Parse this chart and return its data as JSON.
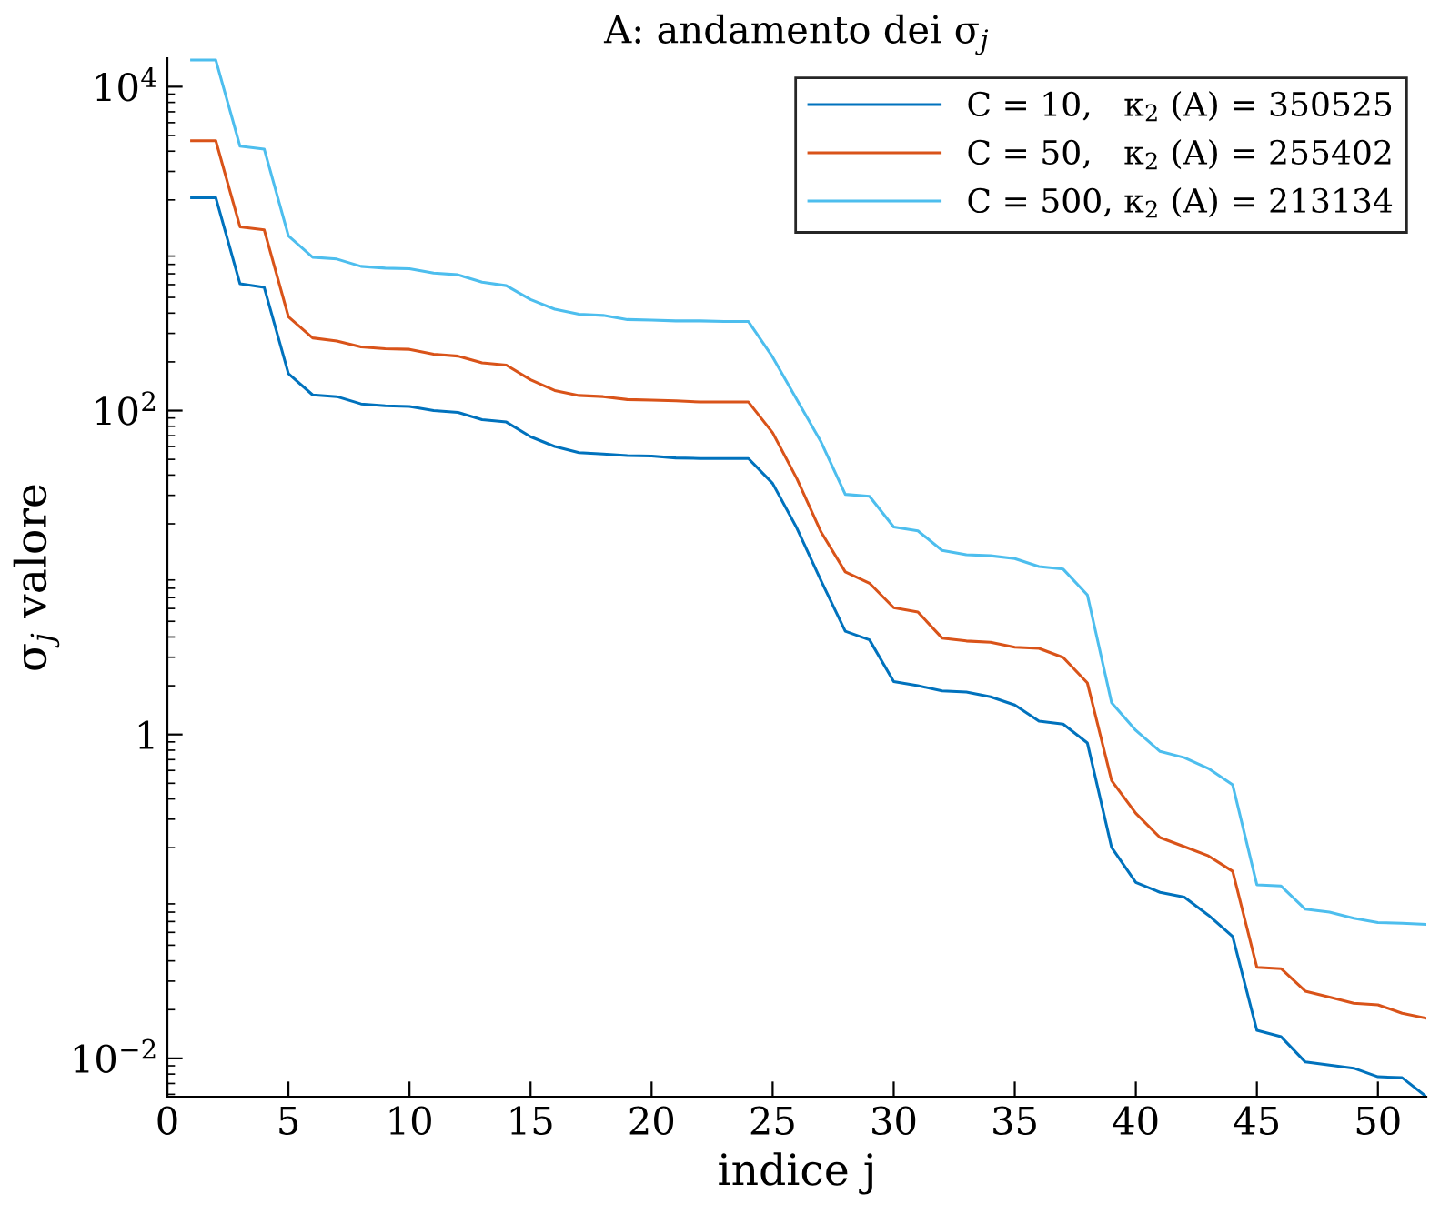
{
  "chart_data": {
    "type": "line",
    "title": "A: andamento dei σ$_{j}$",
    "xlabel": "indice j",
    "ylabel": "σ$_{j}$ valore",
    "x": [
      1,
      2,
      3,
      4,
      5,
      6,
      7,
      8,
      9,
      10,
      11,
      12,
      13,
      14,
      15,
      16,
      17,
      18,
      19,
      20,
      21,
      22,
      23,
      24,
      25,
      26,
      27,
      28,
      29,
      30,
      31,
      32,
      33,
      34,
      35,
      36,
      37,
      38,
      39,
      40,
      41,
      42,
      43,
      44,
      45,
      46,
      47,
      48,
      49,
      50,
      51,
      52
    ],
    "series": [
      {
        "name": "C = 10,   κ$_{2}$ (A) = 350525",
        "color": "#0072bd",
        "values": [
          2065,
          2065,
          607,
          576,
          169,
          125,
          122,
          110,
          107,
          106,
          100,
          97.5,
          88,
          85,
          69,
          60,
          55,
          54,
          52.8,
          52.4,
          51,
          50.6,
          50.6,
          50.6,
          35.5,
          18.8,
          8.9,
          4.34,
          3.84,
          2.12,
          2.0,
          1.86,
          1.83,
          1.71,
          1.52,
          1.21,
          1.16,
          0.886,
          0.201,
          0.122,
          0.106,
          0.099,
          0.0766,
          0.0566,
          0.0149,
          0.0136,
          0.0095,
          0.0091,
          0.0087,
          0.0077,
          0.0076,
          0.0058
        ]
      },
      {
        "name": "C = 50,   κ$_{2}$ (A) = 255402",
        "color": "#d95319",
        "values": [
          4640,
          4640,
          1364,
          1306,
          380,
          281,
          269,
          247,
          241,
          239,
          223,
          217,
          197,
          191,
          155,
          133,
          124,
          122,
          117,
          116,
          115,
          113,
          113,
          113,
          73,
          38,
          17.8,
          10.1,
          8.6,
          6.07,
          5.71,
          3.94,
          3.78,
          3.71,
          3.46,
          3.4,
          2.99,
          2.08,
          0.519,
          0.326,
          0.231,
          0.203,
          0.178,
          0.143,
          0.0365,
          0.0358,
          0.026,
          0.0239,
          0.0219,
          0.0214,
          0.019,
          0.0177
        ]
      },
      {
        "name": "C = 500, κ$_{2}$ (A) = 213134",
        "color": "#4dbeee",
        "values": [
          14600,
          14600,
          4290,
          4120,
          1200,
          885,
          863,
          778,
          758,
          752,
          708,
          690,
          622,
          591,
          485,
          423,
          394,
          387,
          365,
          362,
          358,
          358,
          355,
          355,
          214,
          117,
          64,
          30.4,
          29.6,
          19.1,
          18.1,
          13.7,
          12.9,
          12.7,
          12.2,
          10.9,
          10.5,
          7.27,
          1.57,
          1.06,
          0.786,
          0.72,
          0.617,
          0.489,
          0.118,
          0.116,
          0.0834,
          0.08,
          0.0733,
          0.069,
          0.0684,
          0.0673
        ]
      }
    ],
    "log": "y",
    "xlim": [
      0,
      52
    ],
    "xticks": [
      0,
      5,
      10,
      15,
      20,
      25,
      30,
      35,
      40,
      45,
      50
    ],
    "ylim": [
      0.0058,
      15000
    ],
    "yticks": [
      {
        "value": 0.01,
        "label": "10$^{−2}$"
      },
      1,
      {
        "value": 100,
        "label": "10$^{2}$"
      },
      {
        "value": 10000,
        "label": "10$^{4}$"
      }
    ],
    "grid": false,
    "legend": "top right",
    "marker": "none",
    "line_style": "solid"
  }
}
